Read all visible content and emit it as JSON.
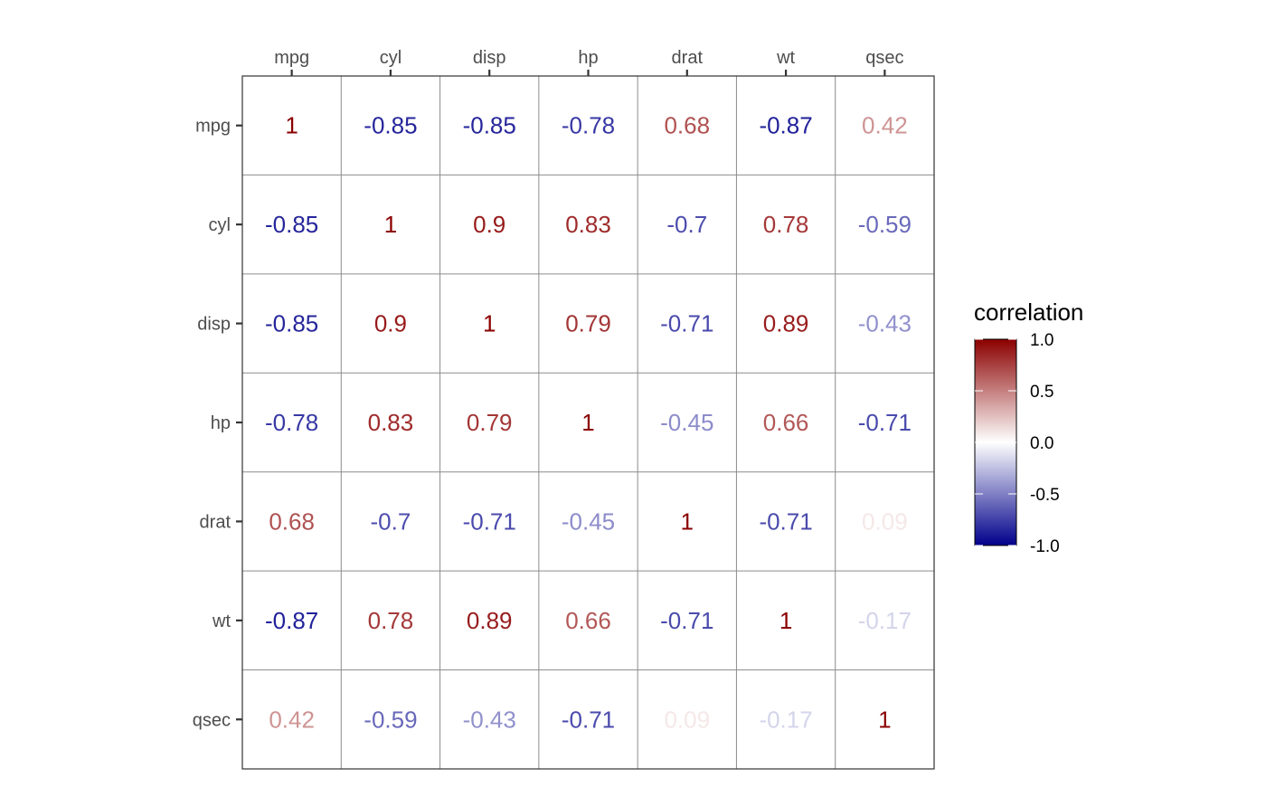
{
  "chart_data": {
    "type": "heatmap",
    "variables": [
      "mpg",
      "cyl",
      "disp",
      "hp",
      "drat",
      "wt",
      "qsec"
    ],
    "x_axis_position": "top",
    "matrix": [
      [
        "1",
        "-0.85",
        "-0.85",
        "-0.78",
        "0.68",
        "-0.87",
        "0.42"
      ],
      [
        "-0.85",
        "1",
        "0.9",
        "0.83",
        "-0.7",
        "0.78",
        "-0.59"
      ],
      [
        "-0.85",
        "0.9",
        "1",
        "0.79",
        "-0.71",
        "0.89",
        "-0.43"
      ],
      [
        "-0.78",
        "0.83",
        "0.79",
        "1",
        "-0.45",
        "0.66",
        "-0.71"
      ],
      [
        "0.68",
        "-0.7",
        "-0.71",
        "-0.45",
        "1",
        "-0.71",
        "0.09"
      ],
      [
        "-0.87",
        "0.78",
        "0.89",
        "0.66",
        "-0.71",
        "1",
        "-0.17"
      ],
      [
        "0.42",
        "-0.59",
        "-0.43",
        "-0.71",
        "0.09",
        "-0.17",
        "1"
      ]
    ],
    "legend": {
      "title": "correlation",
      "placement": "right",
      "range": [
        -1,
        1
      ],
      "ticks": [
        "1.0",
        "0.5",
        "0.0",
        "-0.5",
        "-1.0"
      ],
      "colors": {
        "low": "#00008B",
        "mid": "#FFFFFF",
        "high": "#8B0000"
      }
    },
    "grid": true
  }
}
